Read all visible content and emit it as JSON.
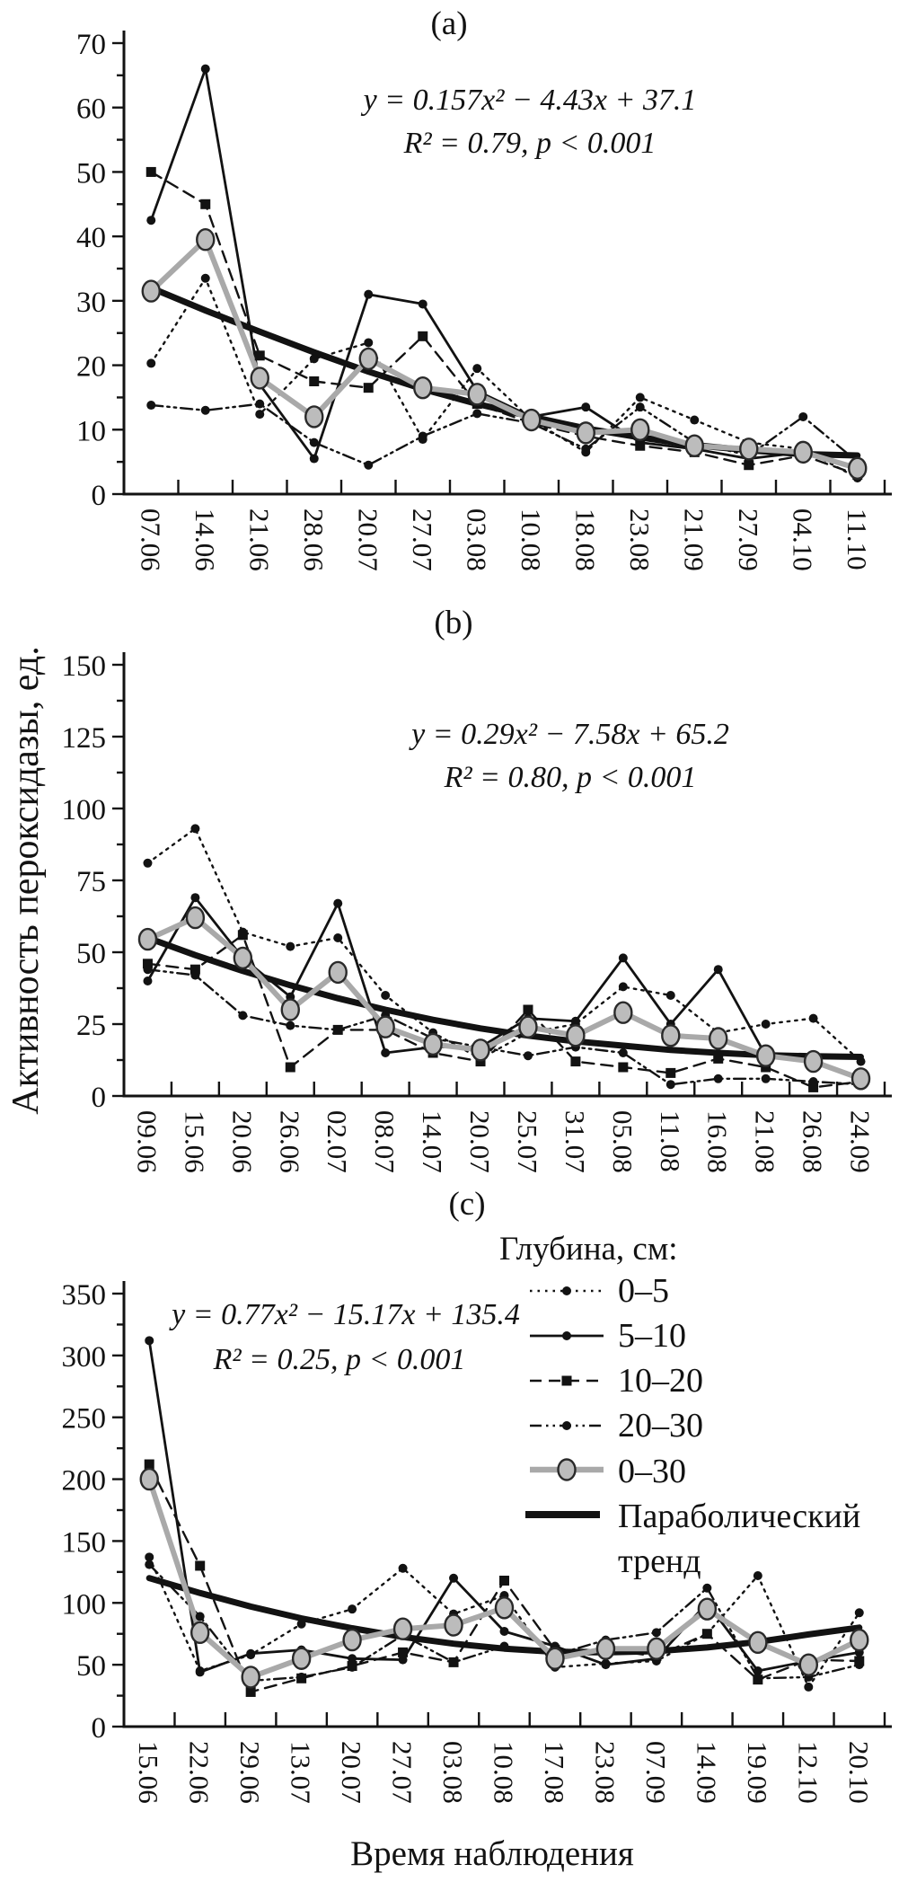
{
  "figure": {
    "y_axis_label": "Активность пероксидазы, ед.",
    "x_axis_label": "Время наблюдения",
    "legend": {
      "title": "Глубина, см:",
      "items": [
        {
          "id": "d0_5",
          "label": "0–5"
        },
        {
          "id": "d5_10",
          "label": "5–10"
        },
        {
          "id": "d10_20",
          "label": "10–20"
        },
        {
          "id": "d20_30",
          "label": "20–30"
        },
        {
          "id": "d0_30",
          "label": "0–30"
        },
        {
          "id": "trend",
          "label": "Параболический тренд",
          "label_lines": [
            "Параболический",
            "тренд"
          ]
        }
      ]
    },
    "colors": {
      "black": "#121212",
      "gray_line": "#a9a9a9",
      "gray_fill": "#bcbcbc"
    }
  },
  "chart_data": [
    {
      "id": "a",
      "type": "line",
      "panel_label": "(a)",
      "equation_lines": [
        "y = 0.157x² − 4.43x + 37.1",
        "R² = 0.79, p < 0.001"
      ],
      "ylim": [
        0,
        70
      ],
      "ytick_step": 10,
      "grid": false,
      "categories": [
        "07.06",
        "14.06",
        "21.06",
        "28.06",
        "20.07",
        "27.07",
        "03.08",
        "10.08",
        "18.08",
        "23.08",
        "21.09",
        "27.09",
        "04.10",
        "11.10"
      ],
      "series": [
        {
          "name": "0–5",
          "style": "dotted",
          "marker": "circle",
          "values": [
            20.3,
            33.5,
            12.4,
            21,
            23.5,
            8.5,
            19.5,
            11.5,
            6.5,
            15,
            11.5,
            8,
            7,
            2.5
          ]
        },
        {
          "name": "5–10",
          "style": "solid",
          "marker": "circle",
          "values": [
            42.5,
            66,
            17,
            5.5,
            31,
            29.5,
            16,
            12,
            13.5,
            8,
            7,
            5.5,
            6.5,
            4
          ]
        },
        {
          "name": "10–20",
          "style": "dashed",
          "marker": "square",
          "values": [
            50,
            45,
            21.5,
            17.5,
            16.5,
            24.5,
            14,
            11,
            9,
            7.5,
            6.5,
            4.5,
            6,
            3
          ]
        },
        {
          "name": "20–30",
          "style": "dashdot",
          "marker": "circle",
          "values": [
            13.8,
            13,
            14,
            8,
            4.5,
            9,
            12.5,
            11,
            7,
            13.5,
            8,
            6,
            12,
            5
          ]
        },
        {
          "name": "0–30",
          "style": "gray",
          "marker": "bigcircle",
          "values": [
            31.5,
            39.5,
            18,
            12,
            21,
            16.5,
            15.5,
            11.5,
            9.5,
            10,
            7.5,
            7,
            6.5,
            4
          ]
        },
        {
          "name": "Параболический тренд",
          "style": "trend",
          "marker": "none",
          "values": [
            32,
            28.5,
            25.2,
            22,
            19,
            16.3,
            14,
            12,
            10.2,
            8.8,
            7.6,
            6.8,
            6.2,
            6
          ]
        }
      ]
    },
    {
      "id": "b",
      "type": "line",
      "panel_label": "(b)",
      "equation_lines": [
        "y = 0.29x² − 7.58x + 65.2",
        "R² = 0.80, p < 0.001"
      ],
      "ylim": [
        0,
        150
      ],
      "ytick_step": 25,
      "grid": false,
      "categories": [
        "09.06",
        "15.06",
        "20.06",
        "26.06",
        "02.07",
        "08.07",
        "14.07",
        "20.07",
        "25.07",
        "31.07",
        "05.08",
        "11.08",
        "16.08",
        "21.08",
        "26.08",
        "24.09"
      ],
      "series": [
        {
          "name": "0–5",
          "style": "dotted",
          "marker": "circle",
          "values": [
            81,
            93,
            57,
            52,
            55,
            35,
            22,
            13,
            22,
            25,
            38,
            35,
            22,
            25,
            27,
            12
          ]
        },
        {
          "name": "5–10",
          "style": "solid",
          "marker": "circle",
          "values": [
            40,
            69,
            48,
            34.5,
            67,
            15,
            17,
            17,
            27,
            26,
            48,
            25,
            44,
            14,
            12,
            6
          ]
        },
        {
          "name": "10–20",
          "style": "dashed",
          "marker": "square",
          "values": [
            46,
            44,
            56,
            10,
            23,
            23,
            15,
            12,
            30,
            12,
            10,
            8,
            13,
            10,
            3,
            5
          ]
        },
        {
          "name": "20–30",
          "style": "dashdot",
          "marker": "circle",
          "values": [
            44,
            42,
            28,
            24.5,
            23,
            28,
            20,
            17,
            14,
            17,
            15,
            4,
            6,
            6,
            5,
            4
          ]
        },
        {
          "name": "0–30",
          "style": "gray",
          "marker": "bigcircle",
          "values": [
            54.5,
            62,
            48,
            30,
            43,
            24,
            18,
            16,
            24,
            21,
            29,
            21,
            20,
            14,
            12,
            6
          ]
        },
        {
          "name": "Параболический тренд",
          "style": "trend",
          "marker": "none",
          "values": [
            55,
            49,
            43.5,
            38.5,
            34,
            30,
            26.5,
            23.5,
            21,
            19,
            17.5,
            16,
            15,
            14.2,
            13.8,
            13.6
          ]
        }
      ]
    },
    {
      "id": "c",
      "type": "line",
      "panel_label": "(c)",
      "equation_lines": [
        "y = 0.77x² − 15.17x + 135.4",
        "R² = 0.25, p < 0.001"
      ],
      "ylim": [
        0,
        350
      ],
      "ytick_step": 50,
      "grid": false,
      "categories": [
        "15.06",
        "22.06",
        "29.06",
        "13.07",
        "20.07",
        "27.07",
        "03.08",
        "10.08",
        "17.08",
        "23.08",
        "07.09",
        "14.09",
        "19.09",
        "12.10",
        "20.10"
      ],
      "series": [
        {
          "name": "0–5",
          "style": "dotted",
          "marker": "circle",
          "values": [
            137,
            45,
            58,
            83,
            95,
            128,
            91,
            106,
            48,
            51,
            53,
            75,
            122,
            32,
            92
          ]
        },
        {
          "name": "5–10",
          "style": "solid",
          "marker": "circle",
          "values": [
            312,
            44,
            59,
            62,
            55,
            54,
            120,
            77,
            65,
            50,
            55,
            100,
            45,
            53,
            60
          ]
        },
        {
          "name": "10–20",
          "style": "dashed",
          "marker": "square",
          "values": [
            212,
            130,
            28,
            39,
            49,
            60,
            52,
            118,
            62,
            62,
            57,
            75,
            38,
            54,
            53
          ]
        },
        {
          "name": "20–30",
          "style": "dashdot",
          "marker": "circle",
          "values": [
            131,
            89,
            37,
            40,
            48,
            74,
            52,
            65,
            58,
            70,
            76,
            112,
            39,
            40,
            50
          ]
        },
        {
          "name": "0–30",
          "style": "gray",
          "marker": "bigcircle",
          "values": [
            200,
            76,
            40,
            55,
            70,
            79,
            82,
            96,
            55,
            63,
            63,
            95,
            68,
            50,
            70
          ]
        },
        {
          "name": "Параболический тренд",
          "style": "trend",
          "marker": "none",
          "values": [
            120,
            108,
            97,
            87.5,
            79.5,
            72.5,
            67,
            63,
            60.5,
            60,
            61,
            64,
            68.5,
            74.5,
            80
          ]
        }
      ]
    }
  ]
}
